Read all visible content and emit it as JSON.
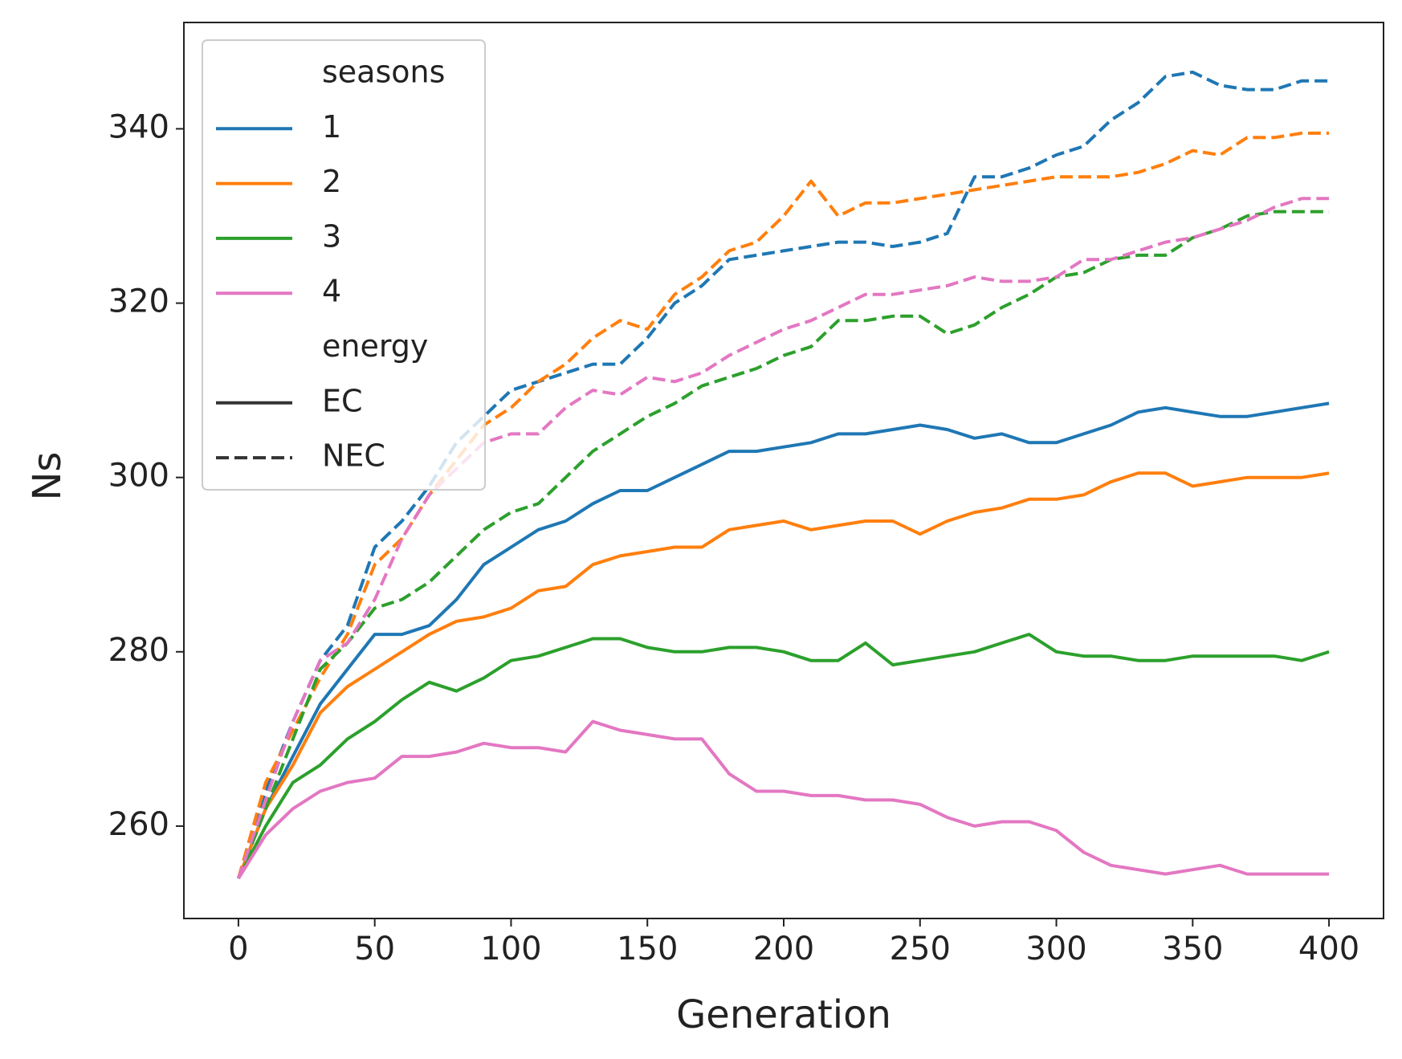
{
  "chart_data": {
    "type": "line",
    "xlabel": "Generation",
    "ylabel": "Ns",
    "x": [
      0,
      10,
      20,
      30,
      40,
      50,
      60,
      70,
      80,
      90,
      100,
      110,
      120,
      130,
      140,
      150,
      160,
      170,
      180,
      190,
      200,
      210,
      220,
      230,
      240,
      250,
      260,
      270,
      280,
      290,
      300,
      310,
      320,
      330,
      340,
      350,
      360,
      370,
      380,
      390,
      400
    ],
    "series": [
      {
        "color": "#1f77b4",
        "dash": "solid",
        "values": [
          254,
          262,
          268,
          274,
          278,
          282,
          282,
          283,
          286,
          290,
          292,
          294,
          295,
          297,
          298.5,
          298.5,
          300,
          301.5,
          303,
          303,
          303.5,
          304,
          305,
          305,
          305.5,
          306,
          305.5,
          304.5,
          305,
          304,
          304,
          305,
          306,
          307.5,
          308,
          307.5,
          307,
          307,
          307.5,
          308,
          308.5
        ]
      },
      {
        "color": "#1f77b4",
        "dash": "dashed",
        "values": [
          254,
          264,
          272,
          279,
          283,
          292,
          295,
          299,
          304,
          307,
          310,
          311,
          312,
          313,
          313,
          316,
          320,
          322,
          325,
          325.5,
          326,
          326.5,
          327,
          327,
          326.5,
          327,
          328,
          334.5,
          334.5,
          335.5,
          337,
          338,
          341,
          343,
          346,
          346.5,
          345,
          344.5,
          344.5,
          345.5,
          345.5
        ]
      },
      {
        "color": "#ff7f0e",
        "dash": "solid",
        "values": [
          254,
          262,
          267,
          273,
          276,
          278,
          280,
          282,
          283.5,
          284,
          285,
          287,
          287.5,
          290,
          291,
          291.5,
          292,
          292,
          294,
          294.5,
          295,
          294,
          294.5,
          295,
          295,
          293.5,
          295,
          296,
          296.5,
          297.5,
          297.5,
          298,
          299.5,
          300.5,
          300.5,
          299,
          299.5,
          300,
          300,
          300,
          300.5
        ]
      },
      {
        "color": "#ff7f0e",
        "dash": "dashed",
        "values": [
          254,
          265,
          271,
          277,
          282,
          290,
          293,
          298,
          302,
          306,
          308,
          311,
          313,
          316,
          318,
          317,
          321,
          323,
          326,
          327,
          330,
          334,
          330,
          331.5,
          331.5,
          332,
          332.5,
          333,
          333.5,
          334,
          334.5,
          334.5,
          334.5,
          335,
          336,
          337.5,
          337,
          339,
          339,
          339.5,
          339.5
        ]
      },
      {
        "color": "#2ca02c",
        "dash": "solid",
        "values": [
          254,
          260,
          265,
          267,
          270,
          272,
          274.5,
          276.5,
          275.5,
          277,
          279,
          279.5,
          280.5,
          281.5,
          281.5,
          280.5,
          280,
          280,
          280.5,
          280.5,
          280,
          279,
          279,
          281,
          278.5,
          279,
          279.5,
          280,
          281,
          282,
          280,
          279.5,
          279.5,
          279,
          279,
          279.5,
          279.5,
          279.5,
          279.5,
          279,
          280
        ]
      },
      {
        "color": "#2ca02c",
        "dash": "dashed",
        "values": [
          254,
          262,
          270,
          278,
          281,
          285,
          286,
          288,
          291,
          294,
          296,
          297,
          300,
          303,
          305,
          307,
          308.5,
          310.5,
          311.5,
          312.5,
          314,
          315,
          318,
          318,
          318.5,
          318.5,
          316.5,
          317.5,
          319.5,
          321,
          323,
          323.5,
          325,
          325.5,
          325.5,
          327.5,
          328.5,
          330,
          330.5,
          330.5,
          330.5
        ]
      },
      {
        "color": "#e377c2",
        "dash": "solid",
        "values": [
          254,
          259,
          262,
          264,
          265,
          265.5,
          268,
          268,
          268.5,
          269.5,
          269,
          269,
          268.5,
          272,
          271,
          270.5,
          270,
          270,
          266,
          264,
          264,
          263.5,
          263.5,
          263,
          263,
          262.5,
          261,
          260,
          260.5,
          260.5,
          259.5,
          257,
          255.5,
          255,
          254.5,
          255,
          255.5,
          254.5,
          254.5,
          254.5,
          254.5
        ]
      },
      {
        "color": "#e377c2",
        "dash": "dashed",
        "values": [
          254,
          263,
          272,
          279,
          281,
          286,
          293,
          298,
          301,
          304,
          305,
          305,
          308,
          310,
          309.5,
          311.5,
          311,
          312,
          314,
          315.5,
          317,
          318,
          319.5,
          321,
          321,
          321.5,
          322,
          323,
          322.5,
          322.5,
          323,
          325,
          325,
          326,
          327,
          327.5,
          328.5,
          329.5,
          331,
          332,
          332
        ]
      }
    ],
    "legend": {
      "hue_title": "seasons",
      "hue": [
        {
          "label": "1",
          "color": "#1f77b4"
        },
        {
          "label": "2",
          "color": "#ff7f0e"
        },
        {
          "label": "3",
          "color": "#2ca02c"
        },
        {
          "label": "4",
          "color": "#e377c2"
        }
      ],
      "style_title": "energy",
      "style": [
        {
          "label": "EC",
          "dash": "solid"
        },
        {
          "label": "NEC",
          "dash": "dashed"
        }
      ],
      "position": "upper left"
    },
    "xlim": [
      -20,
      420
    ],
    "xticks": [
      0,
      50,
      100,
      150,
      200,
      250,
      300,
      350,
      400
    ],
    "ylim": [
      249.4,
      352.2
    ],
    "yticks": [
      260,
      280,
      300,
      320,
      340
    ],
    "grid": false
  }
}
